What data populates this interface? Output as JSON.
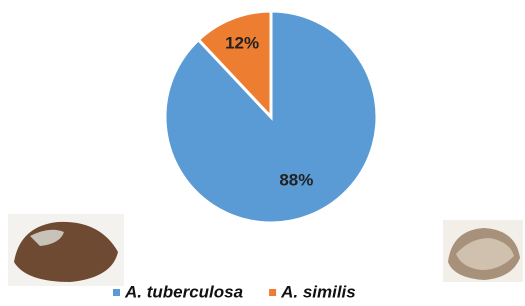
{
  "chart_data": {
    "type": "pie",
    "categories": [
      "A. tuberculosa",
      "A. similis"
    ],
    "values": [
      88,
      12
    ],
    "value_labels": [
      "88%",
      "12%"
    ],
    "colors": [
      "#5b9bd5",
      "#ed7d31"
    ],
    "legend": "bottom"
  }
}
